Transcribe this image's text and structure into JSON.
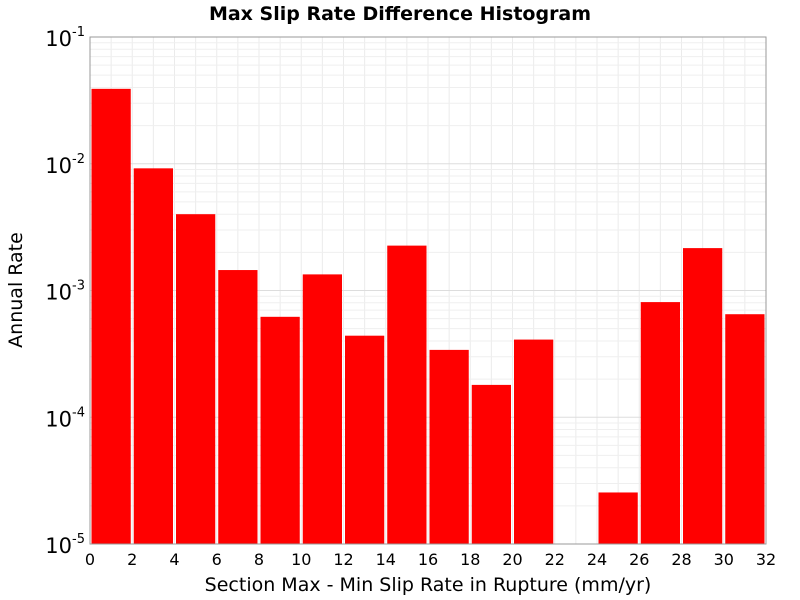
{
  "chart_data": {
    "type": "bar",
    "title": "Max Slip Rate Difference Histogram",
    "xlabel": "Section Max - Min Slip Rate in Rupture (mm/yr)",
    "ylabel": "Annual Rate",
    "y_scale": "log",
    "ylim": [
      1e-05,
      0.1
    ],
    "xlim": [
      0,
      32
    ],
    "grid": true,
    "bar_color": "#ff0000",
    "x_ticks": [
      "0",
      "2",
      "4",
      "6",
      "8",
      "10",
      "12",
      "14",
      "16",
      "18",
      "20",
      "22",
      "24",
      "26",
      "28",
      "30",
      "32"
    ],
    "y_ticks": [
      {
        "base": "10",
        "exp": "-5"
      },
      {
        "base": "10",
        "exp": "-4"
      },
      {
        "base": "10",
        "exp": "-3"
      },
      {
        "base": "10",
        "exp": "-2"
      },
      {
        "base": "10",
        "exp": "-1"
      }
    ],
    "bins": [
      {
        "x0": 0,
        "x1": 2,
        "value": 0.039
      },
      {
        "x0": 2,
        "x1": 4,
        "value": 0.0092
      },
      {
        "x0": 4,
        "x1": 6,
        "value": 0.004
      },
      {
        "x0": 6,
        "x1": 8,
        "value": 0.00145
      },
      {
        "x0": 8,
        "x1": 10,
        "value": 0.00062
      },
      {
        "x0": 10,
        "x1": 12,
        "value": 0.00134
      },
      {
        "x0": 12,
        "x1": 14,
        "value": 0.00044
      },
      {
        "x0": 14,
        "x1": 16,
        "value": 0.00226
      },
      {
        "x0": 16,
        "x1": 18,
        "value": 0.00034
      },
      {
        "x0": 18,
        "x1": 20,
        "value": 0.00018
      },
      {
        "x0": 20,
        "x1": 22,
        "value": 0.00041
      },
      {
        "x0": 22,
        "x1": 24,
        "value": 0
      },
      {
        "x0": 24,
        "x1": 26,
        "value": 2.55e-05
      },
      {
        "x0": 26,
        "x1": 28,
        "value": 0.00081
      },
      {
        "x0": 28,
        "x1": 30,
        "value": 0.00216
      },
      {
        "x0": 30,
        "x1": 32,
        "value": 0.00065
      }
    ]
  }
}
